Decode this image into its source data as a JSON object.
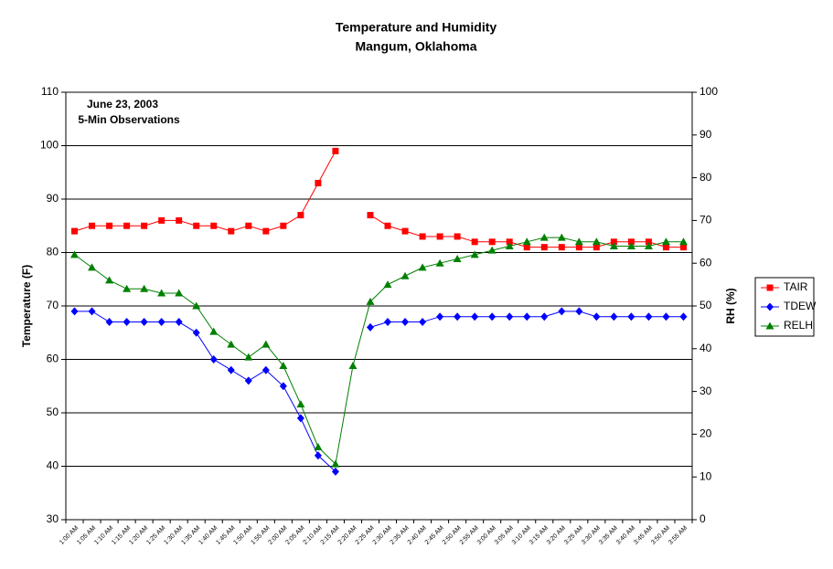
{
  "chart_data": {
    "type": "line",
    "title": "Temperature and Humidity",
    "subtitle": "Mangum, Oklahoma",
    "annotations": [
      "June 23, 2003",
      "5-Min Observations"
    ],
    "y_label": "Temperature (F)",
    "y2_label": "RH (%)",
    "categories": [
      "1:00 AM",
      "1:05 AM",
      "1:10 AM",
      "1:15 AM",
      "1:20 AM",
      "1:25 AM",
      "1:30 AM",
      "1:35 AM",
      "1:40 AM",
      "1:45 AM",
      "1:50 AM",
      "1:55 AM",
      "2:00 AM",
      "2:05 AM",
      "2:10 AM",
      "2:15 AM",
      "2:20 AM",
      "2:25 AM",
      "2:30 AM",
      "2:35 AM",
      "2:40 AM",
      "2:45 AM",
      "2:50 AM",
      "2:55 AM",
      "3:00 AM",
      "3:05 AM",
      "3:10 AM",
      "3:15 AM",
      "3:20 AM",
      "3:25 AM",
      "3:30 AM",
      "3:35 AM",
      "3:40 AM",
      "3:45 AM",
      "3:50 AM",
      "3:55 AM"
    ],
    "series": [
      {
        "name": "TAIR",
        "color": "#ff0000",
        "marker": "square",
        "values": [
          84,
          85,
          85,
          85,
          85,
          86,
          86,
          85,
          85,
          84,
          85,
          84,
          85,
          87,
          93,
          99,
          null,
          87,
          85,
          84,
          83,
          83,
          83,
          82,
          82,
          82,
          81,
          81,
          81,
          81,
          81,
          82,
          82,
          82,
          81,
          81
        ]
      },
      {
        "name": "TDEW",
        "color": "#0000ff",
        "marker": "diamond",
        "values": [
          69,
          69,
          67,
          67,
          67,
          67,
          67,
          65,
          60,
          58,
          56,
          58,
          55,
          49,
          42,
          39,
          null,
          66,
          67,
          67,
          67,
          68,
          68,
          68,
          68,
          68,
          68,
          68,
          69,
          69,
          68,
          68,
          68,
          68,
          68,
          68
        ]
      },
      {
        "name": "RELH",
        "color": "#008000",
        "marker": "triangle",
        "axis": "y2",
        "values": [
          62,
          59,
          56,
          54,
          54,
          53,
          53,
          50,
          44,
          41,
          38,
          41,
          36,
          27,
          17,
          13,
          36,
          51,
          55,
          57,
          59,
          60,
          61,
          62,
          63,
          64,
          65,
          66,
          66,
          65,
          65,
          64,
          64,
          64,
          65,
          65
        ]
      }
    ],
    "ylim": [
      30,
      110
    ],
    "yticks": [
      30,
      40,
      50,
      60,
      70,
      80,
      90,
      100,
      110
    ],
    "y2lim": [
      0,
      100
    ],
    "y2ticks": [
      0,
      10,
      20,
      30,
      40,
      50,
      60,
      70,
      80,
      90,
      100
    ],
    "grid": true,
    "legend": "right"
  }
}
